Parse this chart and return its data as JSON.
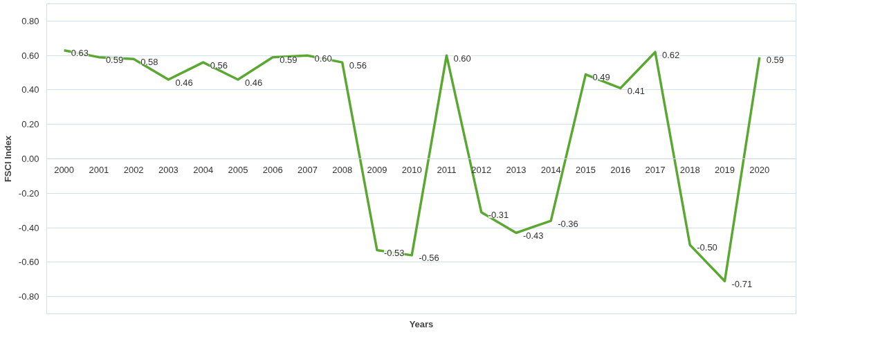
{
  "chart_data": {
    "type": "line",
    "xlabel": "Years",
    "ylabel": "FSCI Index",
    "categories": [
      "2000",
      "2001",
      "2002",
      "2003",
      "2004",
      "2005",
      "2006",
      "2007",
      "2008",
      "2009",
      "2010",
      "2011",
      "2012",
      "2013",
      "2014",
      "2015",
      "2016",
      "2017",
      "2018",
      "2019",
      "2020"
    ],
    "series": [
      {
        "color": "#5aa832",
        "values": [
          0.63,
          0.59,
          0.58,
          0.46,
          0.56,
          0.46,
          0.59,
          0.6,
          0.56,
          -0.53,
          -0.56,
          0.6,
          -0.31,
          -0.43,
          -0.36,
          0.49,
          0.41,
          0.62,
          -0.5,
          -0.71,
          0.59
        ]
      }
    ],
    "ylim": [
      -0.9,
      0.9
    ],
    "yticks": [
      {
        "value": -0.8,
        "label": "-0.80"
      },
      {
        "value": -0.6,
        "label": "-0.60"
      },
      {
        "value": -0.4,
        "label": "-0.40"
      },
      {
        "value": -0.2,
        "label": "-0.20"
      },
      {
        "value": 0,
        "label": "0.00"
      },
      {
        "value": 0.2,
        "label": "0.20"
      },
      {
        "value": 0.4,
        "label": "0.40"
      },
      {
        "value": 0.6,
        "label": "0.60"
      },
      {
        "value": 0.8,
        "label": "0.80"
      }
    ],
    "grid": "y",
    "value_labels": [
      "0.63",
      "0.59",
      "0.58",
      "0.46",
      "0.56",
      "0.46",
      "0.59",
      "0.60",
      "0.56",
      "-0.53",
      "-0.56",
      "0.60",
      "-0.31",
      "-0.43",
      "-0.36",
      "0.49",
      "0.41",
      "0.62",
      "-0.50",
      "-0.71",
      "0.59"
    ],
    "marker": "none",
    "line_style": "solid"
  }
}
